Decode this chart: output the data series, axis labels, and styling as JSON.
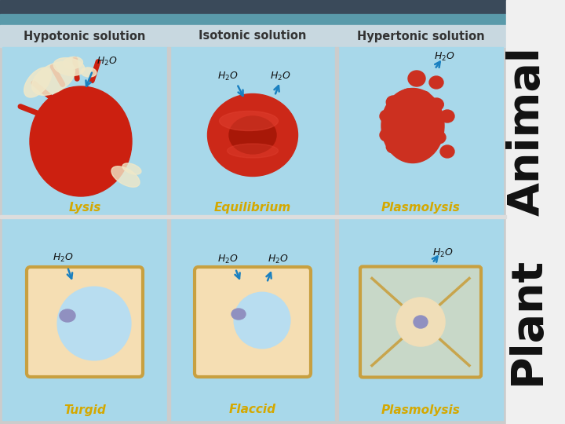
{
  "bg_color_animal": "#a8d8ea",
  "bg_color_plant": "#a8d8ea",
  "top_bar_color1": "#3a4a5a",
  "top_bar_color2": "#5a9aaa",
  "header_bg": "#b8ccd8",
  "right_panel_color": "#e8e8e8",
  "col_headers": [
    "Hypotonic solution",
    "Isotonic solution",
    "Hypertonic solution"
  ],
  "col_header_fontsize": 10.5,
  "animal_label": "Animal",
  "plant_label": "Plant",
  "animal_cell_labels": [
    "Lysis",
    "Equilibrium",
    "Plasmolysis"
  ],
  "plant_cell_labels": [
    "Turgid",
    "Flaccid",
    "Plasmolysis"
  ],
  "cell_label_color": "#d4a800",
  "cell_label_fontsize": 11,
  "h2o_fontsize": 9,
  "arrow_color": "#1a80c0",
  "plant_cell_bg": "#f5deb3",
  "plant_wall_color": "#c8a040",
  "vacuole_color": "#b8ddf0",
  "nucleus_color": "#9090c0",
  "animal_cell_color_lysis": "#cc2010",
  "animal_cell_color_equil": "#cc2818",
  "animal_cell_color_plasmo": "#cc3020",
  "burst_color": "#f0e8c0",
  "figure_width": 7.2,
  "figure_height": 5.4,
  "dpi": 100
}
